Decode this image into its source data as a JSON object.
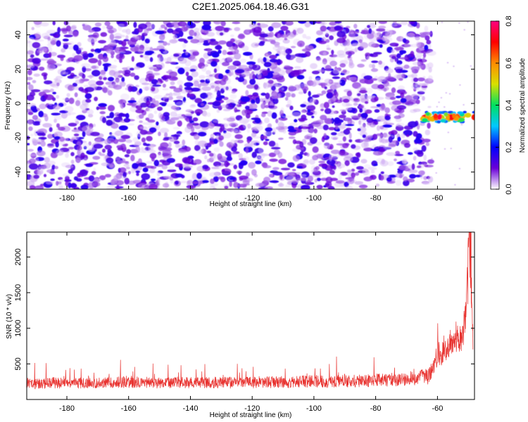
{
  "figure_title": "C2E1.2025.064.18.46.G31",
  "chart_data": [
    {
      "type": "heatmap",
      "title": "C2E1.2025.064.18.46.G31",
      "xlabel": "Height of straight line (km)",
      "ylabel": "Frequency (Hz)",
      "xlim": [
        -193,
        -48
      ],
      "ylim": [
        -50,
        48
      ],
      "xticks": [
        -180,
        -160,
        -140,
        -120,
        -100,
        -80,
        -60
      ],
      "yticks": [
        -40,
        -20,
        0,
        20,
        40
      ],
      "xtick_labels": [
        "-180",
        "-160",
        "-140",
        "-120",
        "-100",
        "-80",
        "-60"
      ],
      "ytick_labels": [
        "-40",
        "-20",
        "0",
        "20",
        "40"
      ],
      "noise_region": {
        "x_range": [
          -193,
          -62
        ],
        "y_range": [
          -50,
          48
        ],
        "normalized_amplitude_range": [
          0.0,
          0.15
        ]
      },
      "signal_band": {
        "x_range": [
          -65,
          -48
        ],
        "center_frequency_hz": -8,
        "half_width_hz": 3,
        "normalized_amplitude_peak": 0.8
      },
      "colorbar": {
        "label": "Normalized spectral amplitude",
        "range": [
          0.0,
          0.8
        ],
        "ticks": [
          0.0,
          0.2,
          0.4,
          0.6,
          0.8
        ],
        "tick_labels": [
          "0.0",
          "0.2",
          "0.4",
          "0.6",
          "0.8"
        ],
        "colors": [
          "#ffffff",
          "#6a00d8",
          "#0000ff",
          "#00c8ff",
          "#00e060",
          "#d8e000",
          "#ff8c00",
          "#ff0000",
          "#ff0080"
        ]
      }
    },
    {
      "type": "line",
      "title": "",
      "xlabel": "Height of straight line (km)",
      "ylabel": "SNR (10 * v/v)",
      "xlim": [
        -193,
        -48
      ],
      "ylim": [
        0,
        2350
      ],
      "xticks": [
        -180,
        -160,
        -140,
        -120,
        -100,
        -80,
        -60
      ],
      "yticks": [
        500,
        1000,
        1500,
        2000
      ],
      "xtick_labels": [
        "-180",
        "-160",
        "-140",
        "-120",
        "-100",
        "-80",
        "-60"
      ],
      "ytick_labels": [
        "500",
        "1000",
        "1500",
        "2000"
      ],
      "series": [
        {
          "color": "#e8322f",
          "x": [
            -193,
            -190,
            -185,
            -180,
            -175,
            -170,
            -165,
            -160,
            -155,
            -150,
            -145,
            -140,
            -135,
            -130,
            -125,
            -120,
            -115,
            -110,
            -105,
            -100,
            -95,
            -90,
            -85,
            -80,
            -75,
            -70,
            -66,
            -63,
            -61,
            -60,
            -59,
            -58,
            -57,
            -56,
            -55,
            -54,
            -53,
            -52,
            -51,
            -50.5,
            -50,
            -49.5,
            -49,
            -48.5
          ],
          "y": [
            220,
            210,
            230,
            215,
            225,
            220,
            230,
            240,
            235,
            220,
            230,
            225,
            230,
            235,
            225,
            230,
            235,
            230,
            240,
            250,
            245,
            255,
            250,
            260,
            270,
            280,
            300,
            310,
            450,
            650,
            600,
            700,
            650,
            780,
            700,
            850,
            800,
            900,
            1050,
            1300,
            2000,
            2250,
            1600,
            900
          ]
        }
      ]
    }
  ]
}
